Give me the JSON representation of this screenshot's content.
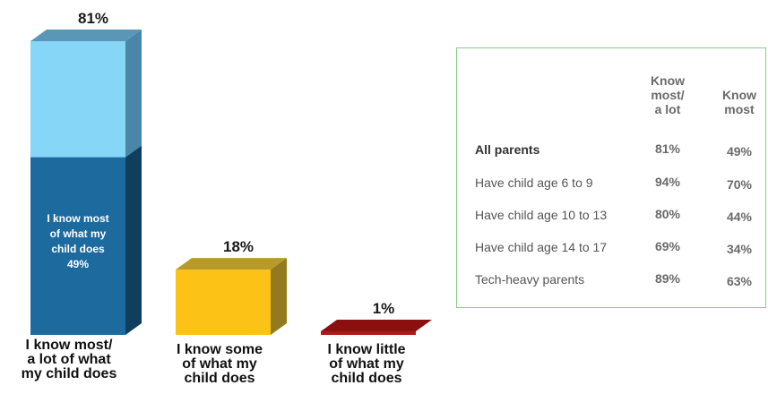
{
  "chart_data": [
    {
      "type": "bar",
      "categories": [
        [
          "I know most/",
          "a lot of what",
          "my child does"
        ],
        [
          "I know some",
          "of what my",
          "child does"
        ],
        [
          "I know little",
          "of what my",
          "child does"
        ]
      ],
      "values": [
        81,
        18,
        1
      ],
      "value_labels": [
        "81%",
        "18%",
        "1%"
      ],
      "ylim": [
        0,
        81
      ],
      "stacked_segment": {
        "bar_index": 0,
        "value": 49,
        "label_lines": [
          "I know most",
          "of what my",
          "child does",
          "49%"
        ]
      },
      "colors": {
        "bar0_top": "#86d6f7",
        "bar0_top_side": "#4a86a8",
        "bar0_top_cap": "#5a96b6",
        "bar0_bottom": "#1c6a9e",
        "bar0_bottom_side": "#0f3f5c",
        "bar1_front": "#fcc215",
        "bar1_side": "#947a1e",
        "bar1_top": "#b89a2a",
        "bar2_front": "#b01818",
        "bar2_top": "#8a1010"
      }
    },
    {
      "type": "table",
      "columns": [
        [
          "Know",
          "most/",
          "a lot"
        ],
        [
          "Know",
          "most"
        ]
      ],
      "rows": [
        {
          "label": "All parents",
          "values": [
            "81%",
            "49%"
          ],
          "bold": true
        },
        {
          "label": "Have child age 6 to 9",
          "values": [
            "94%",
            "70%"
          ]
        },
        {
          "label": "Have child age 10 to 13",
          "values": [
            "80%",
            "44%"
          ]
        },
        {
          "label": "Have child age 14 to 17",
          "values": [
            "69%",
            "34%"
          ]
        },
        {
          "label": "Tech-heavy parents",
          "values": [
            "89%",
            "63%"
          ]
        }
      ],
      "border_color": "#8cc98c"
    }
  ]
}
